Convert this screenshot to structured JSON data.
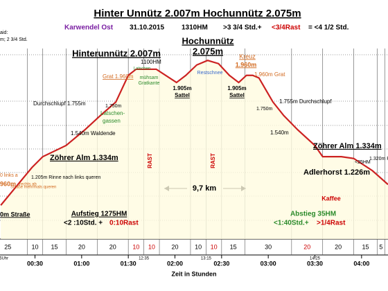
{
  "chart_data": {
    "type": "line",
    "title": "Hinter Unnütz 2.007m Hochunnütz 2.075m",
    "subtitle": [
      "Karwendel Ost",
      "31.10.2015",
      "1310HM",
      ">3 3/4 Std.+",
      "<3/4Rast",
      "= <4 1/2 Std."
    ],
    "x_label": "Zeit in Stunden",
    "color": "#cc2222",
    "x": [
      8,
      28,
      35,
      50,
      62,
      72,
      82,
      90,
      95,
      108,
      121,
      127,
      134,
      141,
      148,
      155,
      161,
      166,
      170,
      174,
      183,
      190,
      199,
      210,
      215,
      227,
      235,
      247,
      257
    ],
    "values": [
      960,
      1250,
      1334,
      1420,
      1540,
      1650,
      1755,
      1960,
      2007,
      2007,
      1905,
      1960,
      2040,
      2075,
      2050,
      1960,
      1905,
      1960,
      1960,
      1940,
      1755,
      1650,
      1540,
      1420,
      1334,
      1334,
      1320,
      1226,
      1120
    ],
    "xlim": [
      7.5,
      257
    ],
    "ylim": [
      700,
      2300
    ],
    "xticks": [
      {
        "value": 30,
        "label": "00:30"
      },
      {
        "value": 60,
        "label": "01:00"
      },
      {
        "value": 90,
        "label": "01:30"
      },
      {
        "value": 120,
        "label": "02:00"
      },
      {
        "value": 150,
        "label": "02:30"
      },
      {
        "value": 180,
        "label": "03:00"
      },
      {
        "value": 210,
        "label": "03:30"
      },
      {
        "value": 240,
        "label": "04:00"
      }
    ],
    "time_marks": [
      {
        "value": 10,
        "label": "6Uhr"
      },
      {
        "value": 100,
        "label": "12:35"
      },
      {
        "value": 140,
        "label": "13:15"
      },
      {
        "value": 210,
        "label": "14:25"
      }
    ],
    "segments": {
      "minutes": [
        25,
        10,
        15,
        20,
        20,
        10,
        10,
        20,
        10,
        10,
        15,
        30,
        20,
        20,
        15,
        5
      ],
      "colors": [
        "#000",
        "#000",
        "#000",
        "#000",
        "#000",
        "#cc0000",
        "#cc0000",
        "#000",
        "#000",
        "#cc0000",
        "#000",
        "#000",
        "#cc0000",
        "#000",
        "#000",
        "#000"
      ]
    },
    "annotations": [
      "aid:",
      "m; 2 3/4 Std.",
      "Hinterunnütz 2.007m",
      "Hochunnütz",
      "2.075m",
      "1100HM",
      "Latschen",
      "Grat 1.960m",
      "mühsam",
      "Gratkante",
      "Restschnee",
      "Kreuz",
      "1.960m",
      "1.960m Grat",
      "1.905m",
      "Sattel",
      "1.905m",
      "Sattel",
      "Durchschlupf 1.755m",
      "1.750m",
      "Latschen-",
      "gassen",
      "1.540m Waldende",
      "1.750m",
      "1.755m Durchschlupf",
      "1.540m",
      "Zöhrer Alm 1.334m",
      "Zöhrer Alm 1.334m",
      "1.205m Rinne nach links queren",
      "0 links a",
      "Straße mehrmals queren",
      "960m",
      "rechts ab",
      "0m Straße",
      "RAST",
      "RAST",
      "9,7 km",
      "Aufstieg 1275HM",
      "<2 :10Std. + ",
      "0:10Rast",
      "Abstieg 35HM",
      "<1:40Std.+",
      ">1/4Rast",
      "Kaffee",
      "Adlerhorst 1.226m",
      "<25HM",
      "1.320m R"
    ]
  }
}
